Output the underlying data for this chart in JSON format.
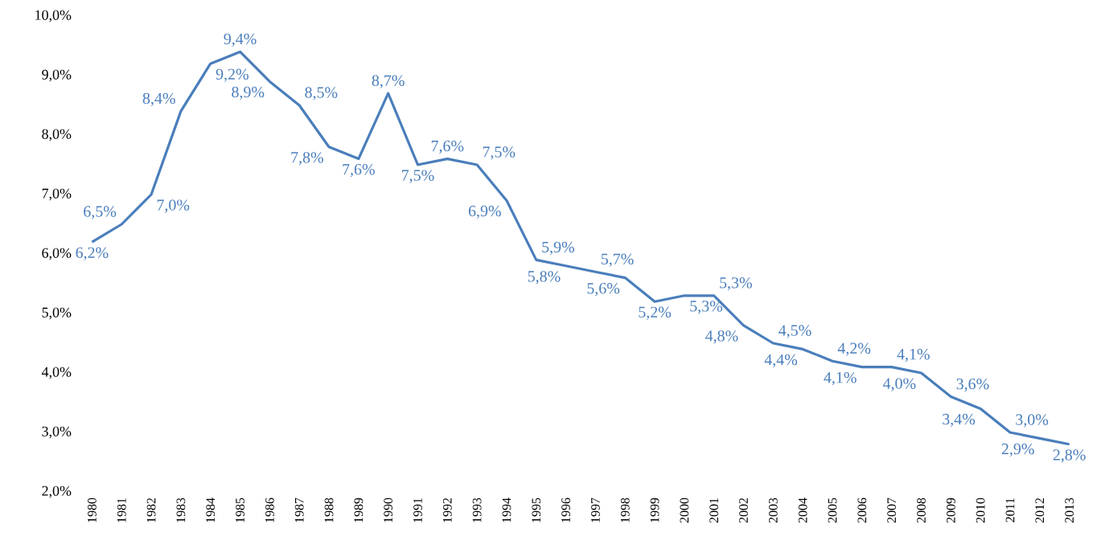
{
  "chart_data": {
    "type": "line",
    "color": "#4a7ebb",
    "categories": [
      "1980",
      "1981",
      "1982",
      "1983",
      "1984",
      "1985",
      "1986",
      "1987",
      "1988",
      "1989",
      "1990",
      "1991",
      "1992",
      "1993",
      "1994",
      "1995",
      "1996",
      "1997",
      "1998",
      "1999",
      "2000",
      "2001",
      "2002",
      "2003",
      "2004",
      "2005",
      "2006",
      "2007",
      "2008",
      "2009",
      "2010",
      "2011",
      "2012",
      "2013"
    ],
    "values": [
      6.2,
      6.5,
      7.0,
      8.4,
      9.2,
      9.4,
      8.9,
      8.5,
      7.8,
      7.6,
      8.7,
      7.5,
      7.6,
      7.5,
      6.9,
      5.9,
      5.8,
      5.7,
      5.6,
      5.2,
      5.3,
      5.3,
      4.8,
      4.5,
      4.4,
      4.2,
      4.1,
      4.1,
      4.0,
      3.6,
      3.4,
      3.0,
      2.9,
      2.8
    ],
    "value_labels": [
      "6,2%",
      "6,5%",
      "7,0%",
      "8,4%",
      "9,2%",
      "9,4%",
      "8,9%",
      "8,5%",
      "7,8%",
      "7,6%",
      "8,7%",
      "7,5%",
      "7,6%",
      "7,5%",
      "6,9%",
      "5,9%",
      "5,8%",
      "5,7%",
      "5,6%",
      "5,2%",
      "5,3%",
      "5,3%",
      "4,8%",
      "4,5%",
      "4,4%",
      "4,2%",
      "4,1%",
      "4,1%",
      "4,0%",
      "3,6%",
      "3,4%",
      "3,0%",
      "2,9%",
      "2,8%"
    ],
    "ylim": [
      2,
      10
    ],
    "yticks": [
      {
        "value": 2,
        "label": "2,0%"
      },
      {
        "value": 3,
        "label": "3,0%"
      },
      {
        "value": 4,
        "label": "4,0%"
      },
      {
        "value": 5,
        "label": "5,0%"
      },
      {
        "value": 6,
        "label": "6,0%"
      },
      {
        "value": 7,
        "label": "7,0%"
      },
      {
        "value": 8,
        "label": "8,0%"
      },
      {
        "value": 9,
        "label": "9,0%"
      },
      {
        "value": 10,
        "label": "10,0%"
      }
    ],
    "grid": false,
    "marker": "none",
    "line_style": "solid"
  }
}
